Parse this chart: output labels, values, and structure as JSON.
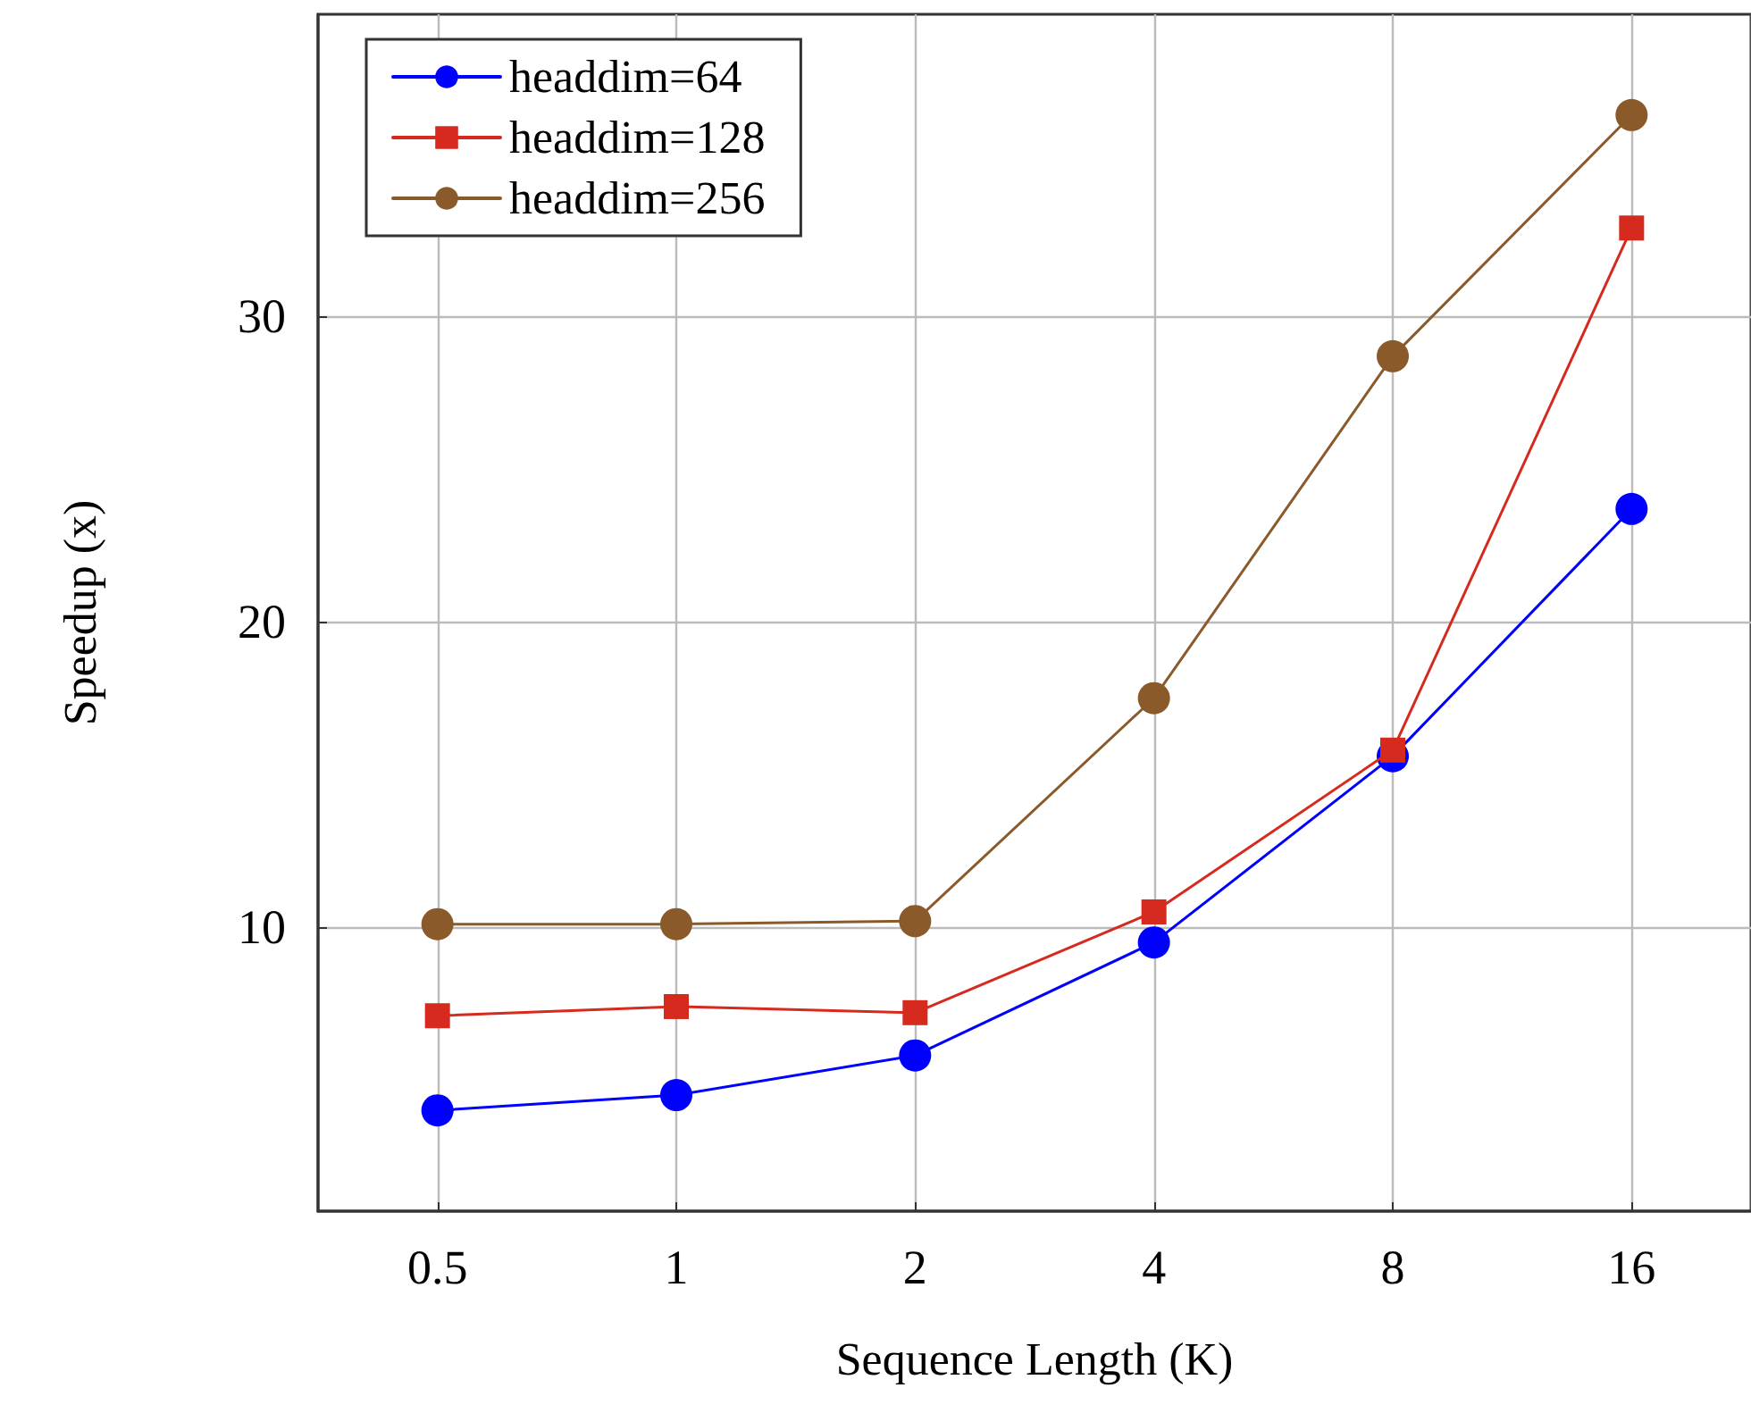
{
  "chart_data": {
    "type": "line",
    "xlabel": "Sequence Length (K)",
    "ylabel": "Speedup (x)",
    "categories": [
      "0.5",
      "1",
      "2",
      "4",
      "8",
      "16"
    ],
    "series": [
      {
        "name": "headdim=64",
        "color": "#0000ff",
        "marker": "circle",
        "values": [
          4.0,
          4.5,
          5.8,
          9.5,
          15.6,
          23.7
        ]
      },
      {
        "name": "headdim=128",
        "color": "#d62a1e",
        "marker": "square",
        "values": [
          7.1,
          7.4,
          7.2,
          10.5,
          15.8,
          32.9
        ]
      },
      {
        "name": "headdim=256",
        "color": "#8b5a2b",
        "marker": "circle",
        "values": [
          10.1,
          10.1,
          10.2,
          17.5,
          28.7,
          36.6
        ]
      }
    ],
    "ylim": [
      0.7,
      39.9
    ],
    "yticks": [
      10,
      20,
      30
    ],
    "grid": true,
    "legend": "top left",
    "line_style": "solid"
  }
}
